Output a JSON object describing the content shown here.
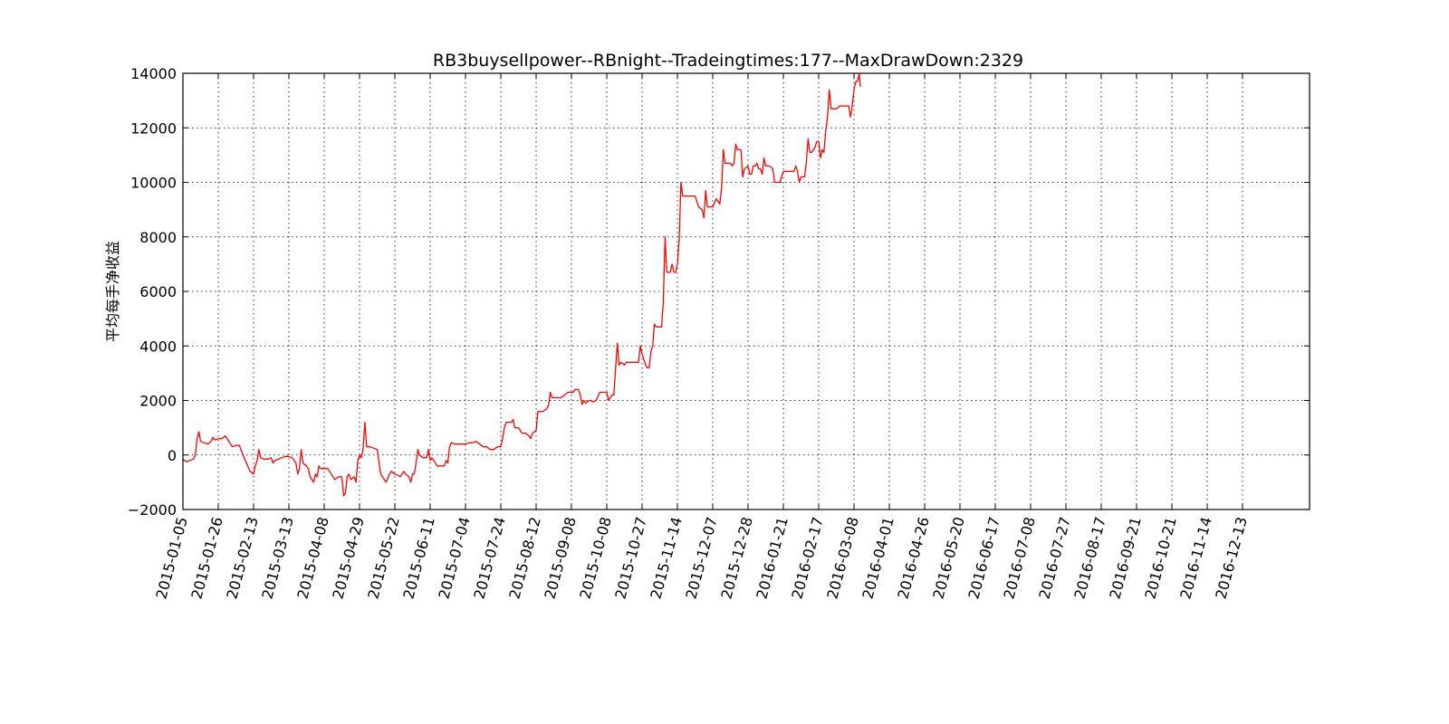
{
  "chart_data": {
    "type": "line",
    "title": "RB3buysellpower--RBnight--Tradeingtimes:177--MaxDrawDown:2329",
    "xlabel": "",
    "ylabel": "平均每手净收益",
    "ylim": [
      -2000,
      14000
    ],
    "yticks": [
      -2000,
      0,
      2000,
      4000,
      6000,
      8000,
      10000,
      12000,
      14000
    ],
    "x_tick_labels": [
      "2015-01-05",
      "2015-01-26",
      "2015-02-13",
      "2015-03-13",
      "2015-04-08",
      "2015-04-29",
      "2015-05-22",
      "2015-06-11",
      "2015-07-04",
      "2015-07-24",
      "2015-08-12",
      "2015-09-08",
      "2015-10-08",
      "2015-10-27",
      "2015-11-14",
      "2015-12-07",
      "2015-12-28",
      "2016-01-21",
      "2016-02-17",
      "2016-03-08",
      "2016-04-01",
      "2016-04-26",
      "2016-05-20",
      "2016-06-17",
      "2016-07-08",
      "2016-07-27",
      "2016-08-17",
      "2016-09-21",
      "2016-10-21",
      "2016-11-14",
      "2016-12-13"
    ],
    "grid": true,
    "line_color": "#ff0000",
    "series": [
      {
        "points": [
          [
            0,
            -150
          ],
          [
            0.1,
            -250
          ],
          [
            0.2,
            -200
          ],
          [
            0.3,
            -150
          ],
          [
            0.35,
            0
          ],
          [
            0.4,
            600
          ],
          [
            0.45,
            850
          ],
          [
            0.5,
            500
          ],
          [
            0.6,
            450
          ],
          [
            0.7,
            400
          ],
          [
            0.8,
            500
          ],
          [
            0.85,
            650
          ],
          [
            0.9,
            550
          ],
          [
            1.0,
            600
          ],
          [
            1.1,
            600
          ],
          [
            1.2,
            700
          ],
          [
            1.3,
            500
          ],
          [
            1.4,
            300
          ],
          [
            1.5,
            350
          ],
          [
            1.6,
            350
          ],
          [
            1.7,
            0
          ],
          [
            1.8,
            -300
          ],
          [
            1.9,
            -600
          ],
          [
            2.0,
            -700
          ],
          [
            2.05,
            -400
          ],
          [
            2.1,
            -200
          ],
          [
            2.15,
            200
          ],
          [
            2.2,
            -100
          ],
          [
            2.3,
            -150
          ],
          [
            2.4,
            -150
          ],
          [
            2.5,
            -100
          ],
          [
            2.55,
            -300
          ],
          [
            2.6,
            -200
          ],
          [
            2.7,
            -150
          ],
          [
            2.8,
            -100
          ],
          [
            2.9,
            -50
          ],
          [
            3.0,
            -50
          ],
          [
            3.1,
            -100
          ],
          [
            3.2,
            -300
          ],
          [
            3.25,
            -700
          ],
          [
            3.3,
            -500
          ],
          [
            3.35,
            200
          ],
          [
            3.4,
            -300
          ],
          [
            3.5,
            -400
          ],
          [
            3.55,
            -500
          ],
          [
            3.6,
            -800
          ],
          [
            3.7,
            -1000
          ],
          [
            3.75,
            -700
          ],
          [
            3.8,
            -800
          ],
          [
            3.85,
            -400
          ],
          [
            3.9,
            -500
          ],
          [
            4.0,
            -500
          ],
          [
            4.1,
            -500
          ],
          [
            4.2,
            -700
          ],
          [
            4.3,
            -900
          ],
          [
            4.4,
            -800
          ],
          [
            4.5,
            -800
          ],
          [
            4.55,
            -1500
          ],
          [
            4.6,
            -1400
          ],
          [
            4.65,
            -800
          ],
          [
            4.7,
            -700
          ],
          [
            4.75,
            -900
          ],
          [
            4.85,
            -800
          ],
          [
            4.9,
            -1000
          ],
          [
            4.95,
            -200
          ],
          [
            5.0,
            0
          ],
          [
            5.05,
            -100
          ],
          [
            5.1,
            200
          ],
          [
            5.15,
            1200
          ],
          [
            5.2,
            300
          ],
          [
            5.3,
            300
          ],
          [
            5.4,
            250
          ],
          [
            5.5,
            200
          ],
          [
            5.6,
            -700
          ],
          [
            5.7,
            -900
          ],
          [
            5.75,
            -1000
          ],
          [
            5.8,
            -850
          ],
          [
            5.85,
            -700
          ],
          [
            5.9,
            -600
          ],
          [
            6.0,
            -700
          ],
          [
            6.1,
            -750
          ],
          [
            6.15,
            -800
          ],
          [
            6.2,
            -700
          ],
          [
            6.25,
            -600
          ],
          [
            6.3,
            -700
          ],
          [
            6.4,
            -800
          ],
          [
            6.45,
            -1000
          ],
          [
            6.5,
            -700
          ],
          [
            6.55,
            -700
          ],
          [
            6.6,
            -300
          ],
          [
            6.65,
            200
          ],
          [
            6.7,
            0
          ],
          [
            6.8,
            -100
          ],
          [
            6.85,
            -100
          ],
          [
            6.9,
            -100
          ],
          [
            6.95,
            200
          ],
          [
            7.0,
            -200
          ],
          [
            7.05,
            -100
          ],
          [
            7.1,
            -200
          ],
          [
            7.2,
            -400
          ],
          [
            7.3,
            -400
          ],
          [
            7.4,
            -400
          ],
          [
            7.45,
            -200
          ],
          [
            7.5,
            -300
          ],
          [
            7.55,
            300
          ],
          [
            7.6,
            450
          ],
          [
            7.7,
            400
          ],
          [
            7.8,
            400
          ],
          [
            7.9,
            400
          ],
          [
            8.0,
            400
          ],
          [
            8.1,
            450
          ],
          [
            8.2,
            450
          ],
          [
            8.3,
            500
          ],
          [
            8.4,
            400
          ],
          [
            8.5,
            300
          ],
          [
            8.6,
            300
          ],
          [
            8.7,
            200
          ],
          [
            8.8,
            200
          ],
          [
            8.9,
            300
          ],
          [
            8.95,
            300
          ],
          [
            9.0,
            300
          ],
          [
            9.05,
            600
          ],
          [
            9.1,
            1000
          ],
          [
            9.15,
            1200
          ],
          [
            9.2,
            1200
          ],
          [
            9.3,
            1200
          ],
          [
            9.35,
            1300
          ],
          [
            9.4,
            1000
          ],
          [
            9.5,
            1000
          ],
          [
            9.6,
            800
          ],
          [
            9.7,
            800
          ],
          [
            9.8,
            700
          ],
          [
            9.85,
            600
          ],
          [
            9.9,
            800
          ],
          [
            10.0,
            900
          ],
          [
            10.05,
            1600
          ],
          [
            10.1,
            1600
          ],
          [
            10.2,
            1600
          ],
          [
            10.3,
            1700
          ],
          [
            10.35,
            1800
          ],
          [
            10.4,
            2300
          ],
          [
            10.45,
            2100
          ],
          [
            10.5,
            2100
          ],
          [
            10.6,
            2100
          ],
          [
            10.7,
            2100
          ],
          [
            10.8,
            2200
          ],
          [
            10.9,
            2300
          ],
          [
            11.0,
            2300
          ],
          [
            11.05,
            2300
          ],
          [
            11.1,
            2400
          ],
          [
            11.2,
            2400
          ],
          [
            11.25,
            2200
          ],
          [
            11.3,
            1850
          ],
          [
            11.35,
            2000
          ],
          [
            11.4,
            1900
          ],
          [
            11.5,
            2000
          ],
          [
            11.55,
            2000
          ],
          [
            11.6,
            1950
          ],
          [
            11.7,
            2000
          ],
          [
            11.8,
            2300
          ],
          [
            11.85,
            2300
          ],
          [
            11.9,
            2300
          ],
          [
            12.0,
            2300
          ],
          [
            12.05,
            2000
          ],
          [
            12.1,
            2100
          ],
          [
            12.15,
            2200
          ],
          [
            12.2,
            2200
          ],
          [
            12.25,
            3200
          ],
          [
            12.3,
            4100
          ],
          [
            12.35,
            3300
          ],
          [
            12.4,
            3400
          ],
          [
            12.5,
            3300
          ],
          [
            12.55,
            3400
          ],
          [
            12.6,
            3400
          ],
          [
            12.7,
            3400
          ],
          [
            12.8,
            3400
          ],
          [
            12.9,
            3400
          ],
          [
            12.95,
            4000
          ],
          [
            13.0,
            3700
          ],
          [
            13.05,
            3500
          ],
          [
            13.1,
            3300
          ],
          [
            13.15,
            3200
          ],
          [
            13.2,
            3200
          ],
          [
            13.25,
            3800
          ],
          [
            13.3,
            4000
          ],
          [
            13.35,
            4800
          ],
          [
            13.4,
            4700
          ],
          [
            13.5,
            4700
          ],
          [
            13.55,
            4700
          ],
          [
            13.6,
            5600
          ],
          [
            13.65,
            8000
          ],
          [
            13.7,
            6700
          ],
          [
            13.8,
            6700
          ],
          [
            13.85,
            7000
          ],
          [
            13.9,
            6700
          ],
          [
            13.95,
            6700
          ],
          [
            14.0,
            7000
          ],
          [
            14.05,
            7900
          ],
          [
            14.1,
            10000
          ],
          [
            14.15,
            9500
          ],
          [
            14.2,
            9500
          ],
          [
            14.3,
            9500
          ],
          [
            14.4,
            9500
          ],
          [
            14.5,
            9500
          ],
          [
            14.55,
            9300
          ],
          [
            14.6,
            9100
          ],
          [
            14.7,
            9000
          ],
          [
            14.75,
            8700
          ],
          [
            14.8,
            9700
          ],
          [
            14.85,
            9100
          ],
          [
            14.9,
            9100
          ],
          [
            15.0,
            9100
          ],
          [
            15.1,
            9400
          ],
          [
            15.15,
            9300
          ],
          [
            15.2,
            9200
          ],
          [
            15.25,
            9800
          ],
          [
            15.3,
            11200
          ],
          [
            15.35,
            10700
          ],
          [
            15.4,
            10700
          ],
          [
            15.5,
            10700
          ],
          [
            15.55,
            10600
          ],
          [
            15.6,
            10700
          ],
          [
            15.65,
            11400
          ],
          [
            15.7,
            11200
          ],
          [
            15.8,
            11200
          ],
          [
            15.85,
            10200
          ],
          [
            15.9,
            10500
          ],
          [
            16.0,
            10600
          ],
          [
            16.05,
            10300
          ],
          [
            16.1,
            10300
          ],
          [
            16.15,
            10600
          ],
          [
            16.2,
            10600
          ],
          [
            16.25,
            10700
          ],
          [
            16.3,
            10500
          ],
          [
            16.35,
            10500
          ],
          [
            16.4,
            10300
          ],
          [
            16.45,
            10900
          ],
          [
            16.5,
            10600
          ],
          [
            16.6,
            10600
          ],
          [
            16.7,
            10500
          ],
          [
            16.75,
            10000
          ],
          [
            16.8,
            10000
          ],
          [
            16.9,
            10000
          ],
          [
            16.95,
            10200
          ],
          [
            17.0,
            10400
          ],
          [
            17.1,
            10400
          ],
          [
            17.2,
            10400
          ],
          [
            17.3,
            10400
          ],
          [
            17.35,
            10600
          ],
          [
            17.4,
            10400
          ],
          [
            17.45,
            10000
          ],
          [
            17.5,
            10200
          ],
          [
            17.6,
            10200
          ],
          [
            17.65,
            10700
          ],
          [
            17.7,
            11600
          ],
          [
            17.75,
            11100
          ],
          [
            17.8,
            11100
          ],
          [
            17.85,
            11200
          ],
          [
            17.9,
            11300
          ],
          [
            17.95,
            11500
          ],
          [
            18.0,
            11500
          ],
          [
            18.05,
            10900
          ],
          [
            18.1,
            11200
          ],
          [
            18.15,
            11100
          ],
          [
            18.2,
            11900
          ],
          [
            18.25,
            12400
          ],
          [
            18.3,
            13400
          ],
          [
            18.35,
            12700
          ],
          [
            18.4,
            12700
          ],
          [
            18.5,
            12700
          ],
          [
            18.6,
            12800
          ],
          [
            18.7,
            12800
          ],
          [
            18.8,
            12800
          ],
          [
            18.85,
            12800
          ],
          [
            18.9,
            12400
          ],
          [
            18.95,
            12800
          ],
          [
            19.0,
            13400
          ],
          [
            19.05,
            13700
          ],
          [
            19.1,
            13700
          ],
          [
            19.15,
            14000
          ],
          [
            19.18,
            13500
          ]
        ]
      }
    ]
  }
}
